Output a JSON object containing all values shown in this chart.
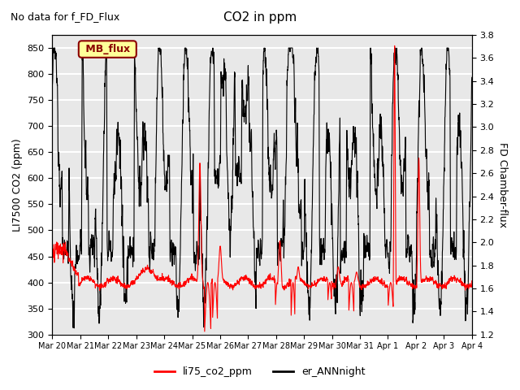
{
  "title": "CO2 in ppm",
  "subtitle": "No data for f_FD_Flux",
  "ylabel_left": "LI7500 CO2 (ppm)",
  "ylabel_right": "FD Chamber-flux",
  "ylim_left": [
    300,
    875
  ],
  "ylim_right": [
    1.2,
    3.8
  ],
  "yticks_left": [
    300,
    350,
    400,
    450,
    500,
    550,
    600,
    650,
    700,
    750,
    800,
    850
  ],
  "yticks_right": [
    1.2,
    1.4,
    1.6,
    1.8,
    2.0,
    2.2,
    2.4,
    2.6,
    2.8,
    3.0,
    3.2,
    3.4,
    3.6,
    3.8
  ],
  "xtick_labels": [
    "Mar 20",
    "Mar 21",
    "Mar 22",
    "Mar 23",
    "Mar 24",
    "Mar 25",
    "Mar 26",
    "Mar 27",
    "Mar 28",
    "Mar 29",
    "Mar 30",
    "Mar 31",
    "Apr 1",
    "Apr 2",
    "Apr 3",
    "Apr 4"
  ],
  "legend_labels": [
    "li75_co2_ppm",
    "er_ANNnight"
  ],
  "line1_color": "red",
  "line2_color": "black",
  "line1_lw": 0.8,
  "line2_lw": 0.8,
  "mb_flux_box_color": "#ffff99",
  "mb_flux_text_color": "#8b0000",
  "background_color": "#e8e8e8",
  "grid_color": "white",
  "n_days": 16
}
